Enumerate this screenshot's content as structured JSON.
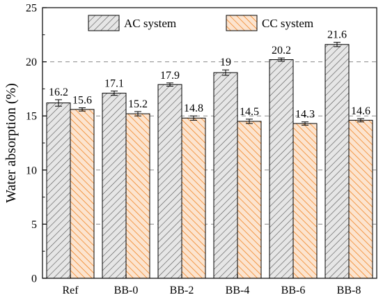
{
  "chart_data": {
    "type": "bar",
    "categories": [
      "Ref",
      "BB-0",
      "BB-2",
      "BB-4",
      "BB-6",
      "BB-8"
    ],
    "series": [
      {
        "name": "AC system",
        "values": [
          16.2,
          17.1,
          17.9,
          19,
          20.2,
          21.6
        ],
        "value_labels": [
          "16.2",
          "17.1",
          "17.9",
          "19",
          "20.2",
          "21.6"
        ],
        "errors": [
          0.3,
          0.2,
          0.15,
          0.25,
          0.15,
          0.2
        ],
        "fill": "#e6e6e6",
        "hatch_color": "#555555",
        "hatch": "diagonal-right"
      },
      {
        "name": "CC system",
        "values": [
          15.6,
          15.2,
          14.8,
          14.5,
          14.3,
          14.6
        ],
        "value_labels": [
          "15.6",
          "15.2",
          "14.8",
          "14.5",
          "14.3",
          "14.6"
        ],
        "errors": [
          0.15,
          0.2,
          0.2,
          0.2,
          0.15,
          0.15
        ],
        "fill": "#fce4cf",
        "hatch_color": "#ef7a12",
        "hatch": "diagonal-left"
      }
    ],
    "ylabel": "Water absorption (%)",
    "xlabel": "",
    "ylim": [
      0,
      25
    ],
    "yticks": [
      0,
      5,
      10,
      15,
      20,
      25
    ],
    "grid": "y-dashed",
    "legend": "top"
  }
}
